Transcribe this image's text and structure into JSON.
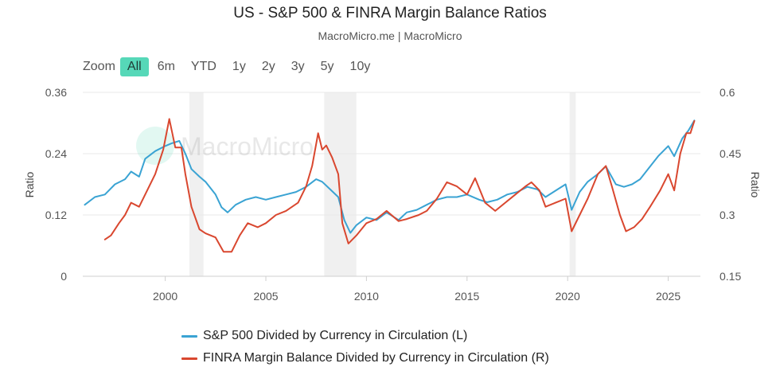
{
  "header": {
    "title": "US - S&P 500 & FINRA Margin Balance Ratios",
    "subtitle": "MacroMicro.me | MacroMicro"
  },
  "watermark": {
    "text": "MacroMicro"
  },
  "zoom": {
    "label": "Zoom",
    "buttons": [
      "All",
      "6m",
      "YTD",
      "1y",
      "2y",
      "3y",
      "5y",
      "10y"
    ],
    "active": "All"
  },
  "colors": {
    "sp500": "#3aa3d3",
    "finra": "#d9472f",
    "recession": "#f0f0f0",
    "grid": "#e8e8e8",
    "zoom_active": "#56d8b8"
  },
  "chart_data": {
    "type": "line",
    "title": "US - S&P 500 & FINRA Margin Balance Ratios",
    "subtitle": "MacroMicro.me | MacroMicro",
    "xlim": [
      1995.9,
      2026.6
    ],
    "x_ticks": [
      2000,
      2005,
      2010,
      2015,
      2020,
      2025
    ],
    "y_left": {
      "label": "Ratio",
      "ticks": [
        0,
        0.12,
        0.24,
        0.36
      ],
      "lim": [
        0,
        0.36
      ]
    },
    "y_right": {
      "label": "Ratio",
      "ticks": [
        0.15,
        0.3,
        0.45,
        0.6
      ],
      "lim": [
        0.15,
        0.6
      ]
    },
    "grid": true,
    "legend_position": "bottom",
    "recessions": [
      [
        2001.2,
        2001.9
      ],
      [
        2007.9,
        2009.5
      ],
      [
        2020.1,
        2020.4
      ]
    ],
    "series": [
      {
        "name": "S&P 500 Divided by Currency in Circulation (L)",
        "axis": "left",
        "points": [
          [
            1996.0,
            0.14
          ],
          [
            1996.5,
            0.155
          ],
          [
            1997.0,
            0.16
          ],
          [
            1997.5,
            0.18
          ],
          [
            1998.0,
            0.19
          ],
          [
            1998.3,
            0.205
          ],
          [
            1998.7,
            0.195
          ],
          [
            1999.0,
            0.23
          ],
          [
            1999.5,
            0.245
          ],
          [
            2000.0,
            0.255
          ],
          [
            2000.3,
            0.26
          ],
          [
            2000.7,
            0.265
          ],
          [
            2001.0,
            0.24
          ],
          [
            2001.3,
            0.21
          ],
          [
            2001.7,
            0.195
          ],
          [
            2002.0,
            0.185
          ],
          [
            2002.5,
            0.16
          ],
          [
            2002.8,
            0.135
          ],
          [
            2003.1,
            0.125
          ],
          [
            2003.5,
            0.14
          ],
          [
            2004.0,
            0.15
          ],
          [
            2004.5,
            0.155
          ],
          [
            2005.0,
            0.15
          ],
          [
            2005.5,
            0.155
          ],
          [
            2006.0,
            0.16
          ],
          [
            2006.5,
            0.165
          ],
          [
            2007.0,
            0.175
          ],
          [
            2007.5,
            0.19
          ],
          [
            2007.8,
            0.185
          ],
          [
            2008.2,
            0.17
          ],
          [
            2008.6,
            0.155
          ],
          [
            2008.9,
            0.11
          ],
          [
            2009.2,
            0.085
          ],
          [
            2009.5,
            0.1
          ],
          [
            2010.0,
            0.115
          ],
          [
            2010.5,
            0.11
          ],
          [
            2011.0,
            0.125
          ],
          [
            2011.6,
            0.11
          ],
          [
            2012.0,
            0.125
          ],
          [
            2012.5,
            0.13
          ],
          [
            2013.0,
            0.14
          ],
          [
            2013.5,
            0.15
          ],
          [
            2014.0,
            0.155
          ],
          [
            2014.5,
            0.155
          ],
          [
            2015.0,
            0.16
          ],
          [
            2015.6,
            0.15
          ],
          [
            2016.0,
            0.145
          ],
          [
            2016.5,
            0.15
          ],
          [
            2017.0,
            0.16
          ],
          [
            2017.5,
            0.165
          ],
          [
            2018.0,
            0.175
          ],
          [
            2018.5,
            0.17
          ],
          [
            2018.9,
            0.155
          ],
          [
            2019.5,
            0.17
          ],
          [
            2019.9,
            0.18
          ],
          [
            2020.2,
            0.13
          ],
          [
            2020.6,
            0.165
          ],
          [
            2021.0,
            0.185
          ],
          [
            2021.5,
            0.2
          ],
          [
            2021.9,
            0.215
          ],
          [
            2022.4,
            0.18
          ],
          [
            2022.8,
            0.175
          ],
          [
            2023.2,
            0.18
          ],
          [
            2023.6,
            0.19
          ],
          [
            2024.0,
            0.21
          ],
          [
            2024.5,
            0.235
          ],
          [
            2025.0,
            0.255
          ],
          [
            2025.3,
            0.235
          ],
          [
            2025.7,
            0.27
          ],
          [
            2026.0,
            0.285
          ],
          [
            2026.3,
            0.305
          ]
        ]
      },
      {
        "name": "FINRA Margin Balance Divided by Currency in Circulation (R)",
        "axis": "right",
        "points": [
          [
            1997.0,
            0.24
          ],
          [
            1997.3,
            0.25
          ],
          [
            1997.7,
            0.28
          ],
          [
            1998.0,
            0.3
          ],
          [
            1998.3,
            0.33
          ],
          [
            1998.7,
            0.32
          ],
          [
            1999.0,
            0.35
          ],
          [
            1999.5,
            0.4
          ],
          [
            1999.9,
            0.46
          ],
          [
            2000.2,
            0.535
          ],
          [
            2000.5,
            0.465
          ],
          [
            2000.8,
            0.465
          ],
          [
            2001.0,
            0.4
          ],
          [
            2001.3,
            0.32
          ],
          [
            2001.7,
            0.265
          ],
          [
            2002.0,
            0.255
          ],
          [
            2002.5,
            0.245
          ],
          [
            2002.9,
            0.21
          ],
          [
            2003.3,
            0.21
          ],
          [
            2003.7,
            0.25
          ],
          [
            2004.1,
            0.28
          ],
          [
            2004.6,
            0.27
          ],
          [
            2005.0,
            0.28
          ],
          [
            2005.5,
            0.3
          ],
          [
            2006.0,
            0.31
          ],
          [
            2006.6,
            0.33
          ],
          [
            2007.0,
            0.37
          ],
          [
            2007.3,
            0.42
          ],
          [
            2007.6,
            0.5
          ],
          [
            2007.8,
            0.46
          ],
          [
            2008.0,
            0.47
          ],
          [
            2008.3,
            0.44
          ],
          [
            2008.6,
            0.4
          ],
          [
            2008.8,
            0.28
          ],
          [
            2009.1,
            0.23
          ],
          [
            2009.5,
            0.25
          ],
          [
            2010.0,
            0.28
          ],
          [
            2010.5,
            0.29
          ],
          [
            2011.0,
            0.31
          ],
          [
            2011.6,
            0.285
          ],
          [
            2012.0,
            0.29
          ],
          [
            2012.6,
            0.3
          ],
          [
            2013.0,
            0.31
          ],
          [
            2013.5,
            0.34
          ],
          [
            2014.0,
            0.38
          ],
          [
            2014.5,
            0.37
          ],
          [
            2015.0,
            0.35
          ],
          [
            2015.4,
            0.39
          ],
          [
            2015.9,
            0.33
          ],
          [
            2016.4,
            0.31
          ],
          [
            2016.9,
            0.33
          ],
          [
            2017.4,
            0.35
          ],
          [
            2017.9,
            0.37
          ],
          [
            2018.2,
            0.38
          ],
          [
            2018.6,
            0.36
          ],
          [
            2018.9,
            0.32
          ],
          [
            2019.4,
            0.33
          ],
          [
            2019.9,
            0.34
          ],
          [
            2020.2,
            0.26
          ],
          [
            2020.6,
            0.3
          ],
          [
            2021.0,
            0.34
          ],
          [
            2021.5,
            0.4
          ],
          [
            2021.9,
            0.42
          ],
          [
            2022.2,
            0.37
          ],
          [
            2022.6,
            0.3
          ],
          [
            2022.9,
            0.26
          ],
          [
            2023.3,
            0.27
          ],
          [
            2023.7,
            0.29
          ],
          [
            2024.1,
            0.32
          ],
          [
            2024.6,
            0.36
          ],
          [
            2025.0,
            0.4
          ],
          [
            2025.3,
            0.36
          ],
          [
            2025.6,
            0.45
          ],
          [
            2025.9,
            0.5
          ],
          [
            2026.1,
            0.5
          ],
          [
            2026.3,
            0.53
          ]
        ]
      }
    ]
  }
}
